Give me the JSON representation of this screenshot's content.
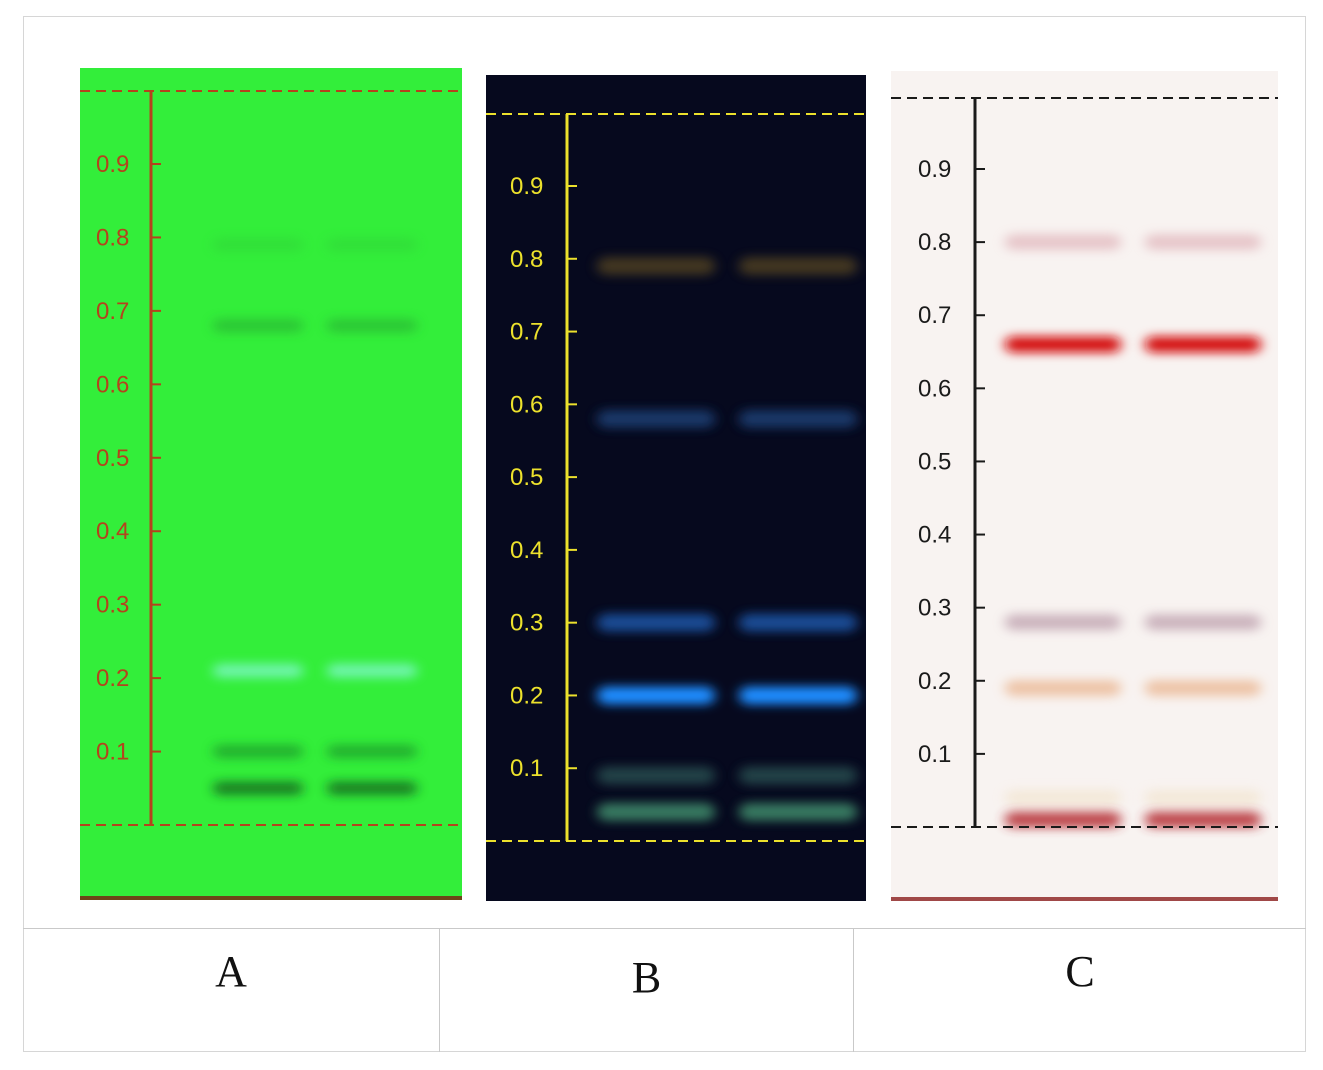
{
  "plates": [
    {
      "id": "A",
      "label": "A",
      "background": "#33ee3a",
      "scale_color": "#b4431d",
      "scale_ticks": [
        "0.9",
        "0.8",
        "0.7",
        "0.6",
        "0.5",
        "0.4",
        "0.3",
        "0.2",
        "0.1"
      ],
      "bands": [
        {
          "rf": 0.79,
          "color": "#2fc637",
          "strength": 0.35
        },
        {
          "rf": 0.68,
          "color": "#27a832",
          "strength": 0.55
        },
        {
          "rf": 0.21,
          "color": "#7ff7c8",
          "strength": 0.8
        },
        {
          "rf": 0.1,
          "color": "#1f9a2c",
          "strength": 0.7
        },
        {
          "rf": 0.05,
          "color": "#166e22",
          "strength": 0.85
        }
      ]
    },
    {
      "id": "B",
      "label": "B",
      "background": "#06091e",
      "scale_color": "#ece12c",
      "scale_ticks": [
        "0.9",
        "0.8",
        "0.7",
        "0.6",
        "0.5",
        "0.4",
        "0.3",
        "0.2",
        "0.1"
      ],
      "bands": [
        {
          "rf": 0.79,
          "color": "#6a5420",
          "strength": 0.6
        },
        {
          "rf": 0.58,
          "color": "#1c3f74",
          "strength": 0.85
        },
        {
          "rf": 0.3,
          "color": "#1d56a8",
          "strength": 0.85
        },
        {
          "rf": 0.2,
          "color": "#1e8cff",
          "strength": 1.0
        },
        {
          "rf": 0.09,
          "color": "#2d5a58",
          "strength": 0.7
        },
        {
          "rf": 0.04,
          "color": "#3f8c6c",
          "strength": 0.85
        }
      ]
    },
    {
      "id": "C",
      "label": "C",
      "background": "#f8f3f1",
      "scale_color": "#1a1a1a",
      "scale_ticks": [
        "0.9",
        "0.8",
        "0.7",
        "0.6",
        "0.5",
        "0.4",
        "0.3",
        "0.2",
        "0.1"
      ],
      "bands": [
        {
          "rf": 0.8,
          "color": "#dca9b0",
          "strength": 0.6
        },
        {
          "rf": 0.66,
          "color": "#d40b0b",
          "strength": 1.0
        },
        {
          "rf": 0.28,
          "color": "#b99aa8",
          "strength": 0.7
        },
        {
          "rf": 0.19,
          "color": "#eab590",
          "strength": 0.75
        },
        {
          "rf": 0.04,
          "color": "#f1e2c9",
          "strength": 0.6
        },
        {
          "rf": 0.01,
          "color": "#b8353a",
          "strength": 0.9
        }
      ]
    }
  ]
}
